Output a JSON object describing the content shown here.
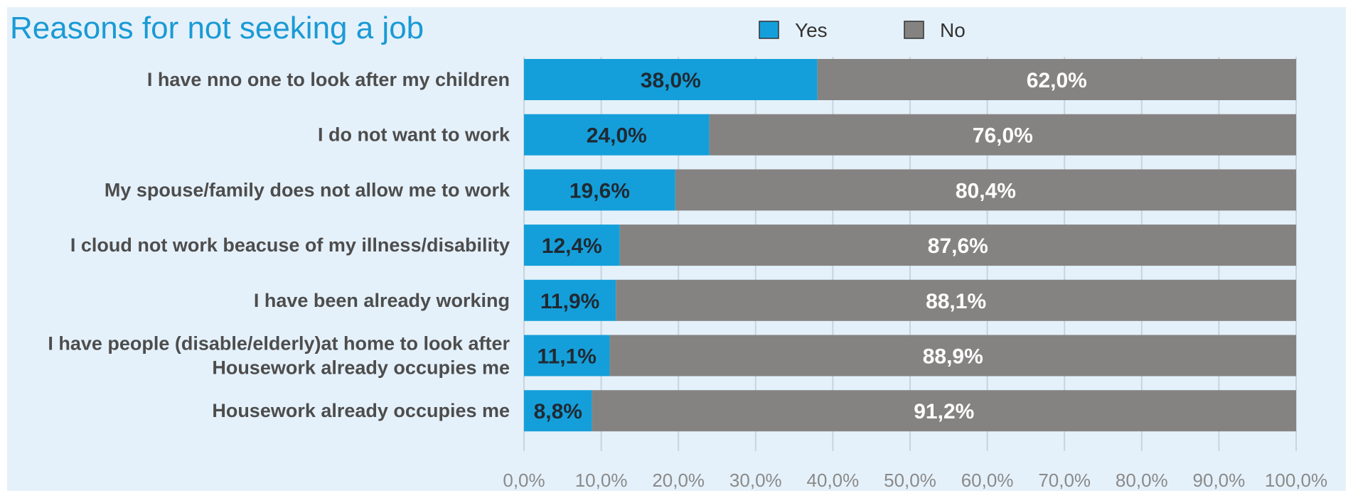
{
  "chart_data": {
    "type": "bar",
    "orientation": "horizontal",
    "stacked": true,
    "title": "Reasons for not seeking a job",
    "categories": [
      [
        "I have nno one to look after my children"
      ],
      [
        "I do not want to work"
      ],
      [
        "My spouse/family does not allow me to work"
      ],
      [
        "I cloud not work beacuse of my illness/disability"
      ],
      [
        "I have been already working"
      ],
      [
        "I have people (disable/elderly)at home to look after",
        "Housework already occupies me"
      ],
      [
        "Housework already occupies me"
      ]
    ],
    "series": [
      {
        "name": "Yes",
        "color": "#159fda",
        "values": [
          38.0,
          24.0,
          19.6,
          12.4,
          11.9,
          11.1,
          8.8
        ],
        "labels": [
          "38,0%",
          "24,0%",
          "19,6%",
          "12,4%",
          "11,9%",
          "11,1%",
          "8,8%"
        ]
      },
      {
        "name": "No",
        "color": "#858382",
        "values": [
          62.0,
          76.0,
          80.4,
          87.6,
          88.1,
          88.9,
          91.2
        ],
        "labels": [
          "62,0%",
          "76,0%",
          "80,4%",
          "87,6%",
          "88,1%",
          "88,9%",
          "91,2%"
        ]
      }
    ],
    "xlim": [
      0,
      100
    ],
    "xticks": [
      "0,0%",
      "10,0%",
      "20,0%",
      "30,0%",
      "40,0%",
      "50,0%",
      "60,0%",
      "70,0%",
      "80,0%",
      "90,0%",
      "100,0%"
    ],
    "grid": true,
    "legend_position": "top"
  },
  "colors": {
    "background": "#e5f1fa",
    "title": "#1a9ad6"
  }
}
